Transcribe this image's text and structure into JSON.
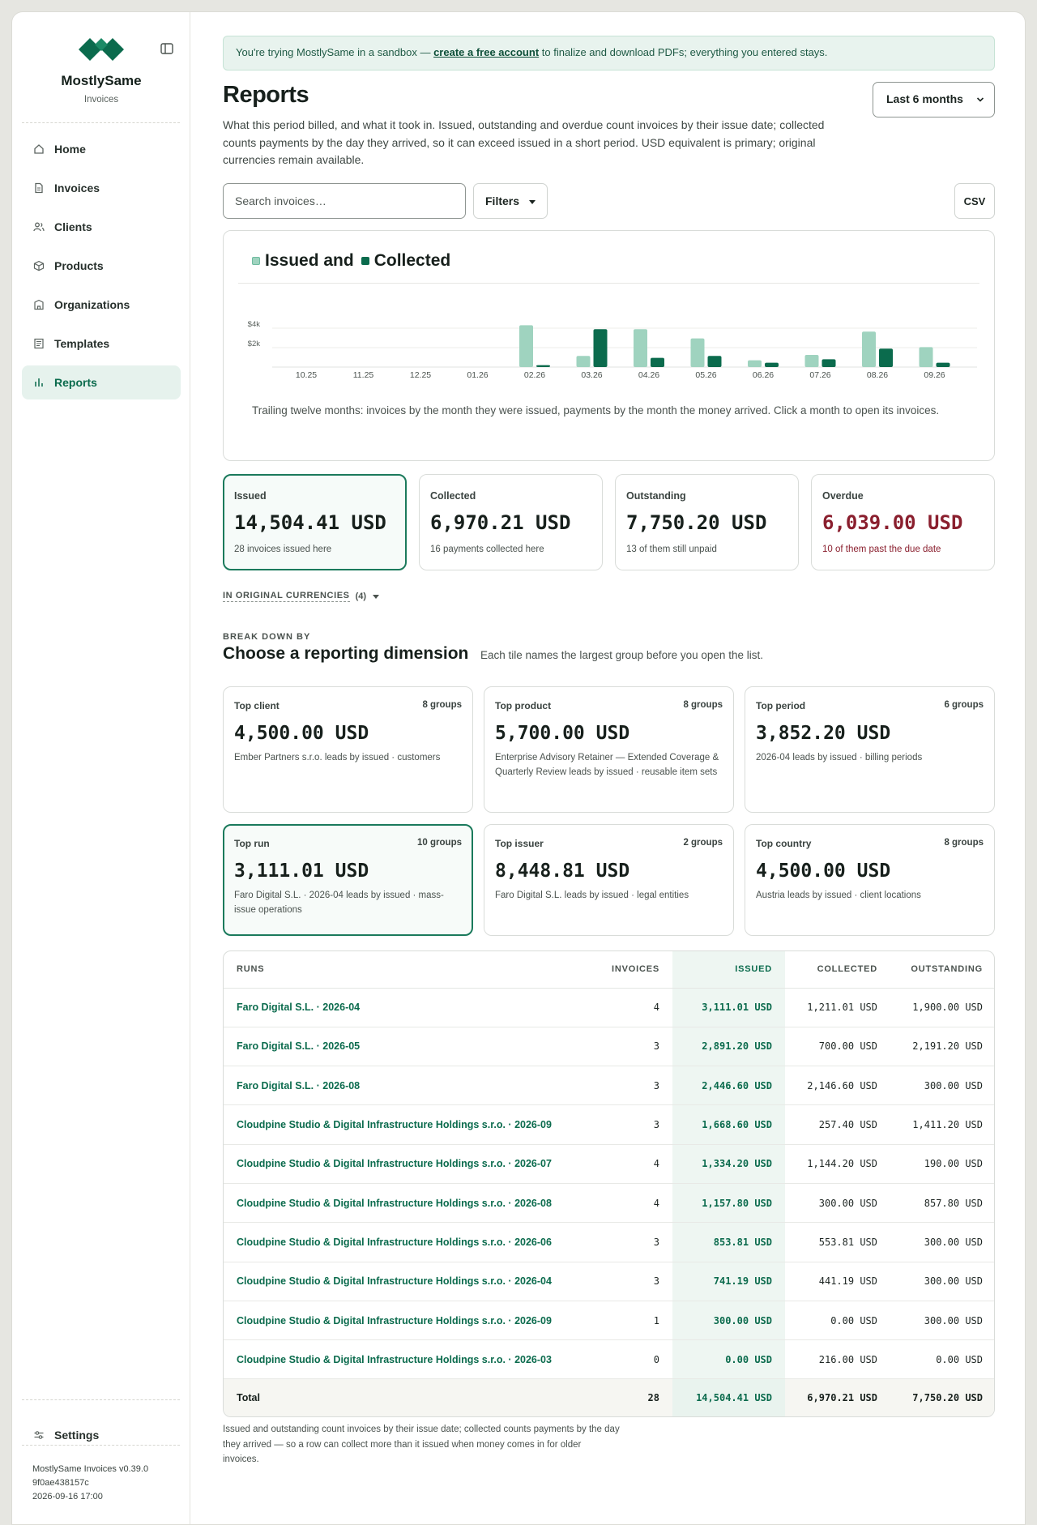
{
  "brand": {
    "name": "MostlySame",
    "sub": "Invoices"
  },
  "sidebar": {
    "items": [
      {
        "label": "Home",
        "icon": "home-icon"
      },
      {
        "label": "Invoices",
        "icon": "file-icon"
      },
      {
        "label": "Clients",
        "icon": "users-icon"
      },
      {
        "label": "Products",
        "icon": "box-icon"
      },
      {
        "label": "Organizations",
        "icon": "building-icon"
      },
      {
        "label": "Templates",
        "icon": "template-icon"
      },
      {
        "label": "Reports",
        "icon": "bar-chart-icon",
        "active": true
      }
    ],
    "settings_label": "Settings",
    "version": [
      "MostlySame Invoices v0.39.0",
      "9f0ae438157c",
      "2026-09-16 17:00"
    ]
  },
  "banner": {
    "before": "You're trying MostlySame in a sandbox — ",
    "link": "create a free account",
    "after": " to finalize and download PDFs; everything you entered stays."
  },
  "page": {
    "title": "Reports",
    "period": "Last 6 months",
    "description": "What this period billed, and what it took in. Issued, outstanding and overdue count invoices by their issue date; collected counts payments by the day they arrived, so it can exceed issued in a short period. USD equivalent is primary; original currencies remain available.",
    "search_placeholder": "Search invoices…",
    "filters_label": "Filters",
    "csv_label": "CSV"
  },
  "chart_data": {
    "type": "bar",
    "title_parts": [
      "Issued and",
      "Collected"
    ],
    "categories": [
      "10.25",
      "11.25",
      "12.25",
      "01.26",
      "02.26",
      "03.26",
      "04.26",
      "05.26",
      "06.26",
      "07.26",
      "08.26",
      "09.26"
    ],
    "series": [
      {
        "name": "Issued",
        "color": "#9fd3bf",
        "values": [
          0,
          0,
          0,
          0,
          4300,
          1150,
          3900,
          2950,
          700,
          1250,
          3650,
          2050
        ]
      },
      {
        "name": "Collected",
        "color": "#0b6b4d",
        "values": [
          0,
          0,
          0,
          0,
          200,
          3900,
          950,
          1150,
          450,
          800,
          1900,
          450
        ]
      }
    ],
    "y_ticks": [
      {
        "value": 2000,
        "label": "$2k"
      },
      {
        "value": 4000,
        "label": "$4k"
      }
    ],
    "ylim": [
      0,
      5000
    ],
    "grid": true,
    "caption": "Trailing twelve months: invoices by the month they were issued, payments by the month the money arrived. Click a month to open its invoices."
  },
  "kpis": [
    {
      "label": "Issued",
      "value": "14,504.41 USD",
      "sub": "28 invoices issued here"
    },
    {
      "label": "Collected",
      "value": "6,970.21 USD",
      "sub": "16 payments collected here"
    },
    {
      "label": "Outstanding",
      "value": "7,750.20 USD",
      "sub": "13 of them still unpaid"
    },
    {
      "label": "Overdue",
      "value": "6,039.00 USD",
      "sub": "10 of them past the due date"
    }
  ],
  "original_currencies": {
    "label": "IN ORIGINAL CURRENCIES",
    "count": "(4)"
  },
  "breakdown": {
    "kicker": "BREAK DOWN BY",
    "title": "Choose a reporting dimension",
    "note": "Each tile names the largest group before you open the list.",
    "tiles": [
      {
        "label": "Top client",
        "groups": "8 groups",
        "value": "4,500.00 USD",
        "sub": "Ember Partners s.r.o. leads by issued · customers"
      },
      {
        "label": "Top product",
        "groups": "8 groups",
        "value": "5,700.00 USD",
        "sub": "Enterprise Advisory Retainer — Extended Coverage & Quarterly Review leads by issued · reusable item sets"
      },
      {
        "label": "Top period",
        "groups": "6 groups",
        "value": "3,852.20 USD",
        "sub": "2026-04 leads by issued · billing periods"
      },
      {
        "label": "Top run",
        "groups": "10 groups",
        "value": "3,111.01 USD",
        "sub": "Faro Digital S.L. · 2026-04 leads by issued · mass-issue operations"
      },
      {
        "label": "Top issuer",
        "groups": "2 groups",
        "value": "8,448.81 USD",
        "sub": "Faro Digital S.L. leads by issued · legal entities"
      },
      {
        "label": "Top country",
        "groups": "8 groups",
        "value": "4,500.00 USD",
        "sub": "Austria leads by issued · client locations"
      }
    ]
  },
  "table": {
    "headers": [
      "RUNS",
      "INVOICES",
      "ISSUED",
      "COLLECTED",
      "OUTSTANDING"
    ],
    "rows": [
      [
        "Faro Digital S.L. · 2026-04",
        "4",
        "3,111.01 USD",
        "1,211.01 USD",
        "1,900.00 USD"
      ],
      [
        "Faro Digital S.L. · 2026-05",
        "3",
        "2,891.20 USD",
        "700.00 USD",
        "2,191.20 USD"
      ],
      [
        "Faro Digital S.L. · 2026-08",
        "3",
        "2,446.60 USD",
        "2,146.60 USD",
        "300.00 USD"
      ],
      [
        "Cloudpine Studio & Digital Infrastructure Holdings s.r.o. · 2026-09",
        "3",
        "1,668.60 USD",
        "257.40 USD",
        "1,411.20 USD"
      ],
      [
        "Cloudpine Studio & Digital Infrastructure Holdings s.r.o. · 2026-07",
        "4",
        "1,334.20 USD",
        "1,144.20 USD",
        "190.00 USD"
      ],
      [
        "Cloudpine Studio & Digital Infrastructure Holdings s.r.o. · 2026-08",
        "4",
        "1,157.80 USD",
        "300.00 USD",
        "857.80 USD"
      ],
      [
        "Cloudpine Studio & Digital Infrastructure Holdings s.r.o. · 2026-06",
        "3",
        "853.81 USD",
        "553.81 USD",
        "300.00 USD"
      ],
      [
        "Cloudpine Studio & Digital Infrastructure Holdings s.r.o. · 2026-04",
        "3",
        "741.19 USD",
        "441.19 USD",
        "300.00 USD"
      ],
      [
        "Cloudpine Studio & Digital Infrastructure Holdings s.r.o. · 2026-09",
        "1",
        "300.00 USD",
        "0.00 USD",
        "300.00 USD"
      ],
      [
        "Cloudpine Studio & Digital Infrastructure Holdings s.r.o. · 2026-03",
        "0",
        "0.00 USD",
        "216.00 USD",
        "0.00 USD"
      ]
    ],
    "total": [
      "Total",
      "28",
      "14,504.41 USD",
      "6,970.21 USD",
      "7,750.20 USD"
    ],
    "footnote": "Issued and outstanding count invoices by their issue date; collected counts payments by the day they arrived — so a row can collect more than it issued when money comes in for older invoices."
  },
  "colors": {
    "accent": "#0b6b4d",
    "accent_light": "#9fd3bf",
    "overdue": "#8a1f2e"
  }
}
